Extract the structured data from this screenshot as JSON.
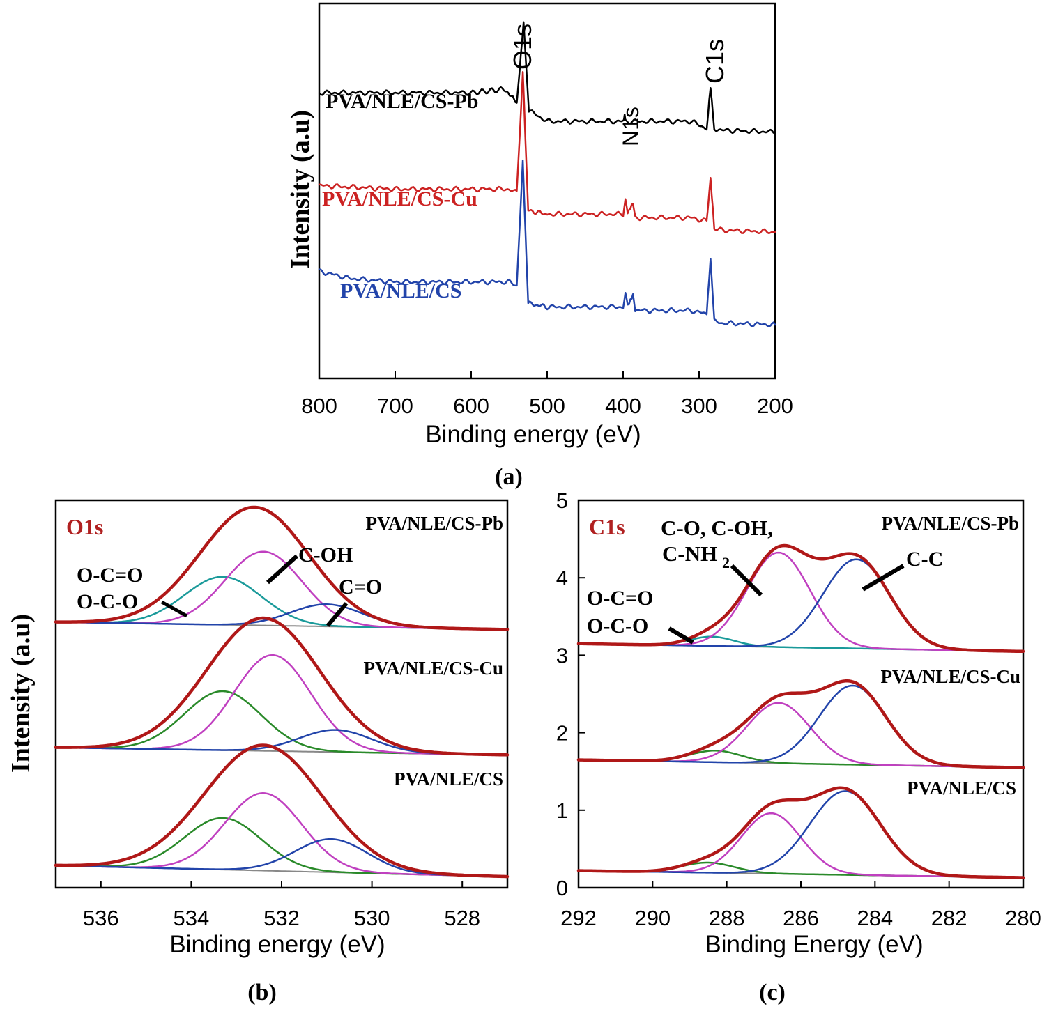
{
  "chart_data": [
    {
      "type": "line",
      "panel_label": "(a)",
      "xlabel": "Binding energy (eV)",
      "ylabel": "Intensity (a.u)",
      "xlim": [
        800,
        200
      ],
      "x_reversed": true,
      "x_ticks": [
        800,
        700,
        600,
        500,
        400,
        300,
        200
      ],
      "series": [
        {
          "name": "PVA/NLE/CS-Pb",
          "color": "#000000",
          "baseline": 0.72,
          "points": [
            [
              800,
              0.8
            ],
            [
              700,
              0.8
            ],
            [
              600,
              0.8
            ],
            [
              555,
              0.81
            ],
            [
              540,
              0.77
            ],
            [
              531,
              1.0
            ],
            [
              524,
              0.75
            ],
            [
              500,
              0.72
            ],
            [
              400,
              0.72
            ],
            [
              398,
              0.735
            ],
            [
              396,
              0.72
            ],
            [
              310,
              0.72
            ],
            [
              290,
              0.7
            ],
            [
              285,
              0.82
            ],
            [
              280,
              0.7
            ],
            [
              270,
              0.695
            ],
            [
              200,
              0.69
            ]
          ]
        },
        {
          "name": "PVA/NLE/CS-Cu",
          "color": "#cc2222",
          "baseline": 0.44,
          "points": [
            [
              800,
              0.54
            ],
            [
              700,
              0.53
            ],
            [
              600,
              0.53
            ],
            [
              550,
              0.53
            ],
            [
              540,
              0.52
            ],
            [
              532,
              0.86
            ],
            [
              525,
              0.47
            ],
            [
              500,
              0.46
            ],
            [
              400,
              0.46
            ],
            [
              397,
              0.5
            ],
            [
              394,
              0.46
            ],
            [
              387,
              0.49
            ],
            [
              384,
              0.45
            ],
            [
              310,
              0.45
            ],
            [
              290,
              0.44
            ],
            [
              285,
              0.56
            ],
            [
              280,
              0.42
            ],
            [
              270,
              0.415
            ],
            [
              200,
              0.41
            ]
          ]
        },
        {
          "name": "PVA/NLE/CS",
          "color": "#2244aa",
          "baseline": 0.15,
          "points": [
            [
              800,
              0.3
            ],
            [
              760,
              0.28
            ],
            [
              700,
              0.27
            ],
            [
              600,
              0.27
            ],
            [
              550,
              0.27
            ],
            [
              540,
              0.26
            ],
            [
              532,
              0.61
            ],
            [
              525,
              0.21
            ],
            [
              500,
              0.2
            ],
            [
              400,
              0.2
            ],
            [
              397,
              0.24
            ],
            [
              394,
              0.2
            ],
            [
              387,
              0.23
            ],
            [
              384,
              0.19
            ],
            [
              310,
              0.19
            ],
            [
              290,
              0.18
            ],
            [
              285,
              0.33
            ],
            [
              280,
              0.16
            ],
            [
              270,
              0.155
            ],
            [
              200,
              0.15
            ]
          ]
        }
      ],
      "annotations": [
        {
          "text": "O1s",
          "x": 531
        },
        {
          "text": "N1s",
          "x": 400
        },
        {
          "text": "C1s",
          "x": 285
        }
      ]
    },
    {
      "type": "line",
      "panel_label": "(b)",
      "title": "O1s",
      "xlabel": "Binding energy (eV)",
      "ylabel": "Intensity (a.u)",
      "xlim": [
        537,
        527
      ],
      "x_reversed": true,
      "x_ticks": [
        536,
        534,
        532,
        530,
        528
      ],
      "stacks": [
        {
          "name": "PVA/NLE/CS-Pb",
          "baseline_left": 0.72,
          "baseline_right": 0.7,
          "envelope": {
            "center": 532.6,
            "amp": 0.32,
            "sigma": 1.2,
            "color": "#b01818"
          },
          "components": [
            {
              "label": "O-C=O O-C-O",
              "center": 533.3,
              "amp": 0.13,
              "sigma": 0.85,
              "color": "#1a9a9a"
            },
            {
              "label": "C-OH",
              "center": 532.4,
              "amp": 0.2,
              "sigma": 0.85,
              "color": "#c040c0"
            },
            {
              "label": "C=O",
              "center": 531.0,
              "amp": 0.06,
              "sigma": 0.8,
              "color": "#2244aa"
            }
          ]
        },
        {
          "name": "PVA/NLE/CS-Cu",
          "baseline_left": 0.38,
          "baseline_right": 0.36,
          "envelope": {
            "center": 532.4,
            "amp": 0.36,
            "sigma": 1.25,
            "color": "#b01818"
          },
          "components": [
            {
              "center": 533.3,
              "amp": 0.16,
              "sigma": 0.85,
              "color": "#2a8a2a"
            },
            {
              "center": 532.2,
              "amp": 0.26,
              "sigma": 0.85,
              "color": "#c040c0"
            },
            {
              "center": 530.8,
              "amp": 0.06,
              "sigma": 0.8,
              "color": "#2244aa"
            }
          ]
        },
        {
          "name": "PVA/NLE/CS",
          "baseline_left": 0.06,
          "baseline_right": 0.03,
          "envelope": {
            "center": 532.4,
            "amp": 0.34,
            "sigma": 1.3,
            "color": "#b01818"
          },
          "components": [
            {
              "center": 533.3,
              "amp": 0.14,
              "sigma": 0.85,
              "color": "#2a8a2a"
            },
            {
              "center": 532.4,
              "amp": 0.21,
              "sigma": 0.85,
              "color": "#c040c0"
            },
            {
              "center": 530.9,
              "amp": 0.09,
              "sigma": 0.8,
              "color": "#2244aa"
            }
          ]
        }
      ],
      "annotations": [
        "O-C=O",
        "O-C-O",
        "C-OH",
        "C=O"
      ]
    },
    {
      "type": "line",
      "panel_label": "(c)",
      "title": "C1s",
      "xlabel": "Binding Energy (eV)",
      "xlim": [
        292,
        280
      ],
      "x_reversed": true,
      "ylim": [
        0,
        5
      ],
      "x_ticks": [
        292,
        290,
        288,
        286,
        284,
        282,
        280
      ],
      "y_ticks": [
        0,
        1,
        2,
        3,
        4,
        5
      ],
      "stacks": [
        {
          "name": "PVA/NLE/CS-Pb",
          "baseline_left": 3.15,
          "baseline_right": 3.05,
          "components": [
            {
              "label": "O-C=O O-C-O",
              "center": 288.4,
              "amp": 0.12,
              "sigma": 0.6,
              "color": "#1a9a9a"
            },
            {
              "label": "C-O, C-OH, C-NH2",
              "center": 286.6,
              "amp": 1.22,
              "sigma": 0.85,
              "color": "#c040c0"
            },
            {
              "label": "C-C",
              "center": 284.5,
              "amp": 1.15,
              "sigma": 0.9,
              "color": "#2244aa"
            }
          ]
        },
        {
          "name": "PVA/NLE/CS-Cu",
          "baseline_left": 1.65,
          "baseline_right": 1.55,
          "components": [
            {
              "center": 288.3,
              "amp": 0.15,
              "sigma": 0.7,
              "color": "#2a8a2a"
            },
            {
              "center": 286.6,
              "amp": 0.78,
              "sigma": 0.85,
              "color": "#c040c0"
            },
            {
              "center": 284.6,
              "amp": 1.02,
              "sigma": 0.9,
              "color": "#2244aa"
            }
          ]
        },
        {
          "name": "PVA/NLE/CS",
          "baseline_left": 0.22,
          "baseline_right": 0.13,
          "components": [
            {
              "center": 288.5,
              "amp": 0.13,
              "sigma": 0.7,
              "color": "#2a8a2a"
            },
            {
              "center": 286.8,
              "amp": 0.78,
              "sigma": 0.8,
              "color": "#c040c0"
            },
            {
              "center": 284.8,
              "amp": 1.08,
              "sigma": 0.95,
              "color": "#2244aa"
            }
          ]
        }
      ],
      "annotations": [
        "C-O, C-OH,",
        "C-NH",
        "2",
        "O-C=O",
        "O-C-O",
        "C-C"
      ]
    }
  ]
}
